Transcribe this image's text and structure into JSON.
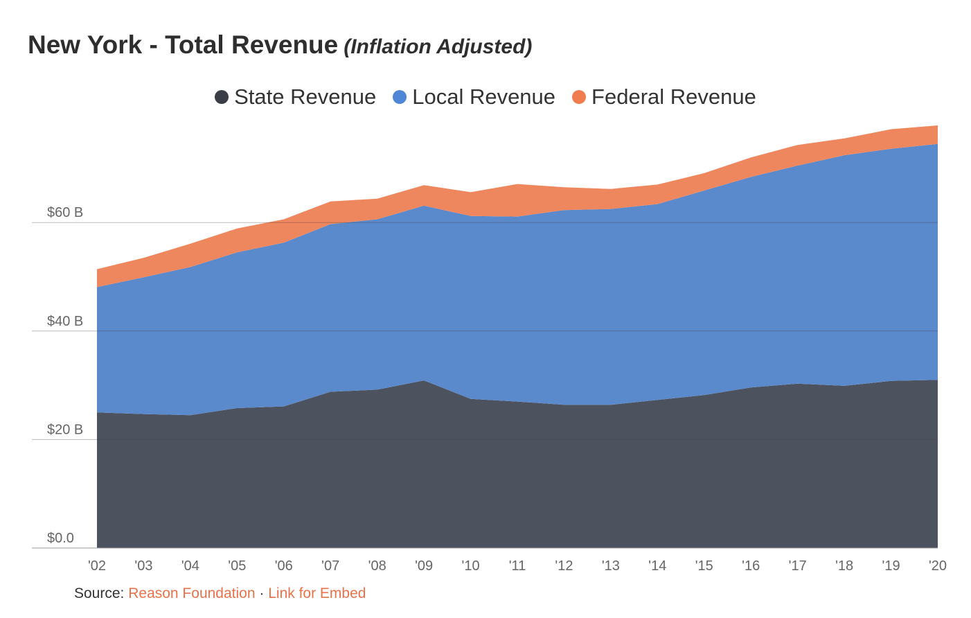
{
  "header": {
    "title": "New York - Total Revenue",
    "subtitle": "(Inflation Adjusted)"
  },
  "footer": {
    "source_label": "Source:",
    "source_link": "Reason Foundation",
    "separator": "·",
    "embed_link": "Link for Embed"
  },
  "chart_data": {
    "type": "area",
    "stacked": true,
    "title": "New York - Total Revenue",
    "subtitle": "(Inflation Adjusted)",
    "categories": [
      "'02",
      "'03",
      "'04",
      "'05",
      "'06",
      "'07",
      "'08",
      "'09",
      "'10",
      "'11",
      "'12",
      "'13",
      "'14",
      "'15",
      "'16",
      "'17",
      "'18",
      "'19",
      "'20"
    ],
    "y_ticks": [
      0,
      20,
      40,
      60
    ],
    "y_tick_labels": [
      "$0.0",
      "$20 B",
      "$40 B",
      "$60 B"
    ],
    "ylim": [
      0,
      78
    ],
    "grid": true,
    "legend_position": "top-center",
    "series": [
      {
        "name": "State Revenue",
        "color": "#4d535e",
        "values": [
          25.0,
          24.7,
          24.5,
          25.8,
          26.1,
          28.8,
          29.2,
          30.9,
          27.5,
          27.0,
          26.4,
          26.4,
          27.3,
          28.2,
          29.6,
          30.3,
          29.9,
          30.8,
          31.0
        ]
      },
      {
        "name": "Local Revenue",
        "color": "#5a89cc",
        "values": [
          23.1,
          25.2,
          27.3,
          28.7,
          30.2,
          30.9,
          31.4,
          32.2,
          33.7,
          34.1,
          35.9,
          36.1,
          36.1,
          37.7,
          38.8,
          40.2,
          42.5,
          42.8,
          43.5
        ]
      },
      {
        "name": "Federal Revenue",
        "color": "#ef875e",
        "values": [
          3.3,
          3.6,
          4.3,
          4.4,
          4.3,
          4.2,
          3.8,
          3.8,
          4.4,
          6.0,
          4.2,
          3.7,
          3.6,
          3.2,
          3.6,
          3.8,
          3.1,
          3.6,
          3.4
        ]
      }
    ]
  }
}
